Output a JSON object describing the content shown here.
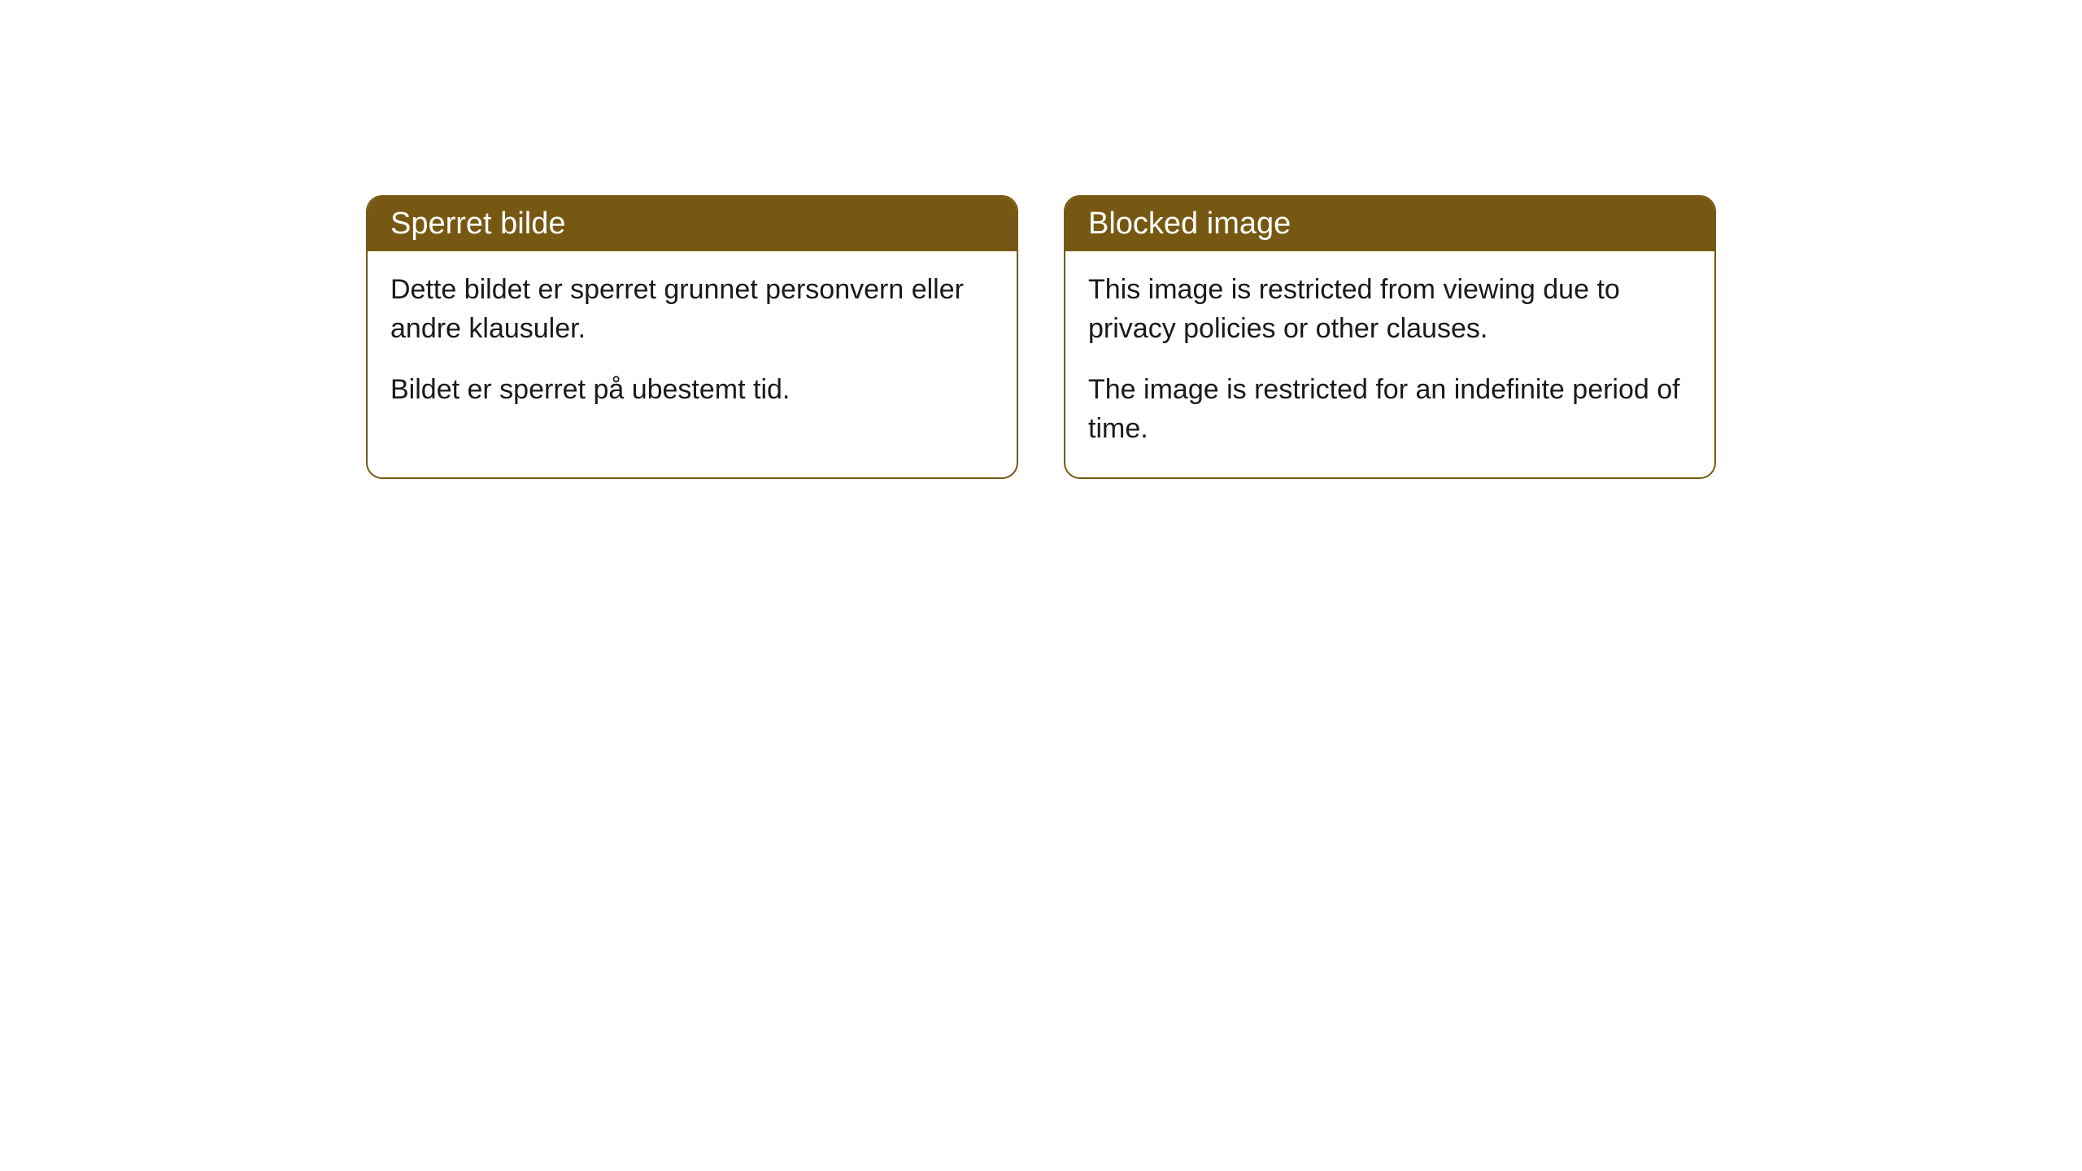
{
  "cards": [
    {
      "title": "Sperret bilde",
      "paragraph1": "Dette bildet er sperret grunnet personvern eller andre klausuler.",
      "paragraph2": "Bildet er sperret på ubestemt tid."
    },
    {
      "title": "Blocked image",
      "paragraph1": "This image is restricted from viewing due to privacy policies or other clauses.",
      "paragraph2": "The image is restricted for an indefinite period of time."
    }
  ],
  "styling": {
    "header_bg_color": "#765812",
    "header_text_color": "#ffffff",
    "border_color": "#765812",
    "body_text_color": "#1a1a1a",
    "card_bg_color": "#ffffff",
    "page_bg_color": "#ffffff",
    "border_radius": 20,
    "title_fontsize": 38,
    "body_fontsize": 34
  }
}
